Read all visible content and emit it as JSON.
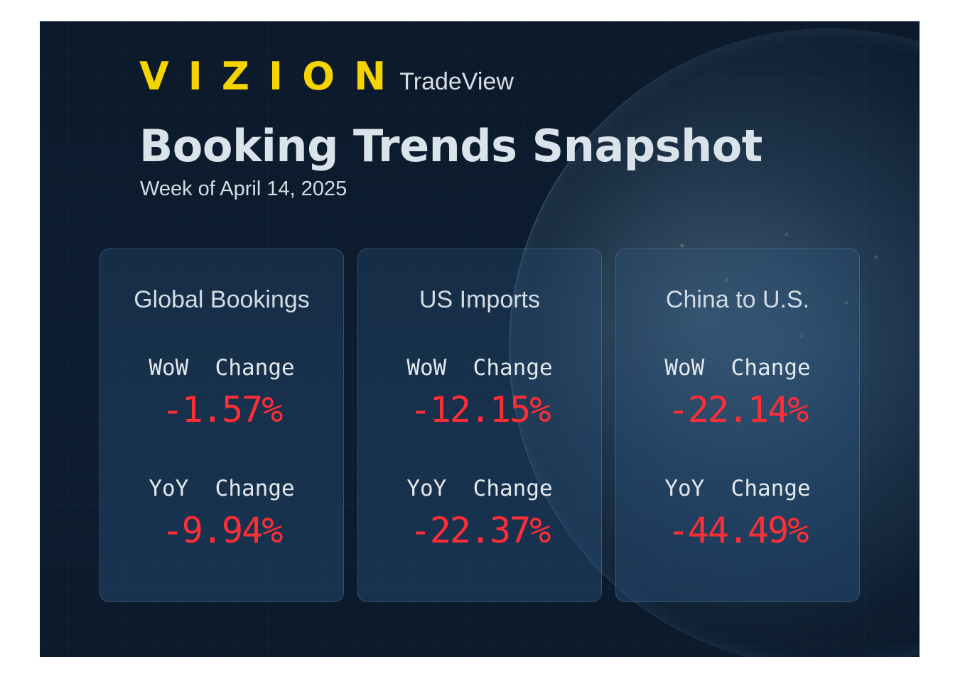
{
  "brand": {
    "logo_text": "VIZION",
    "product": "TradeView"
  },
  "header": {
    "title": "Booking Trends Snapshot",
    "subtitle": "Week of April 14, 2025"
  },
  "colors": {
    "background": "#0c1a2b",
    "brand_yellow": "#f5d400",
    "negative": "#ff2e36",
    "text": "#dbe3ea"
  },
  "cards": [
    {
      "title": "Global Bookings",
      "wow_label": "WoW  Change",
      "wow_value": "-1.57%",
      "yoy_label": "YoY  Change",
      "yoy_value": "-9.94%"
    },
    {
      "title": "US Imports",
      "wow_label": "WoW  Change",
      "wow_value": "-12.15%",
      "yoy_label": "YoY  Change",
      "yoy_value": "-22.37%"
    },
    {
      "title": "China to U.S.",
      "wow_label": "WoW  Change",
      "wow_value": "-22.14%",
      "yoy_label": "YoY  Change",
      "yoy_value": "-44.49%"
    }
  ]
}
